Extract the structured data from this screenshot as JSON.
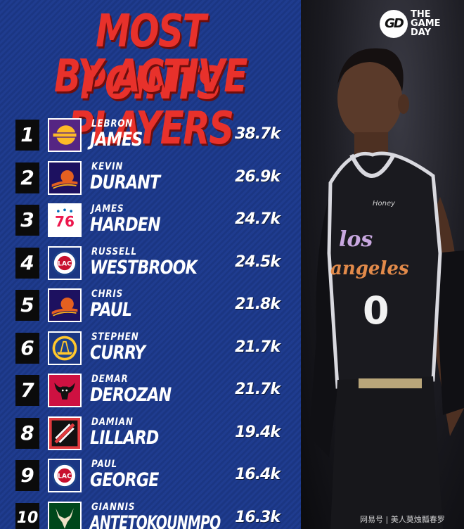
{
  "title": {
    "line1": "MOST POINTS",
    "line2": "BY ACTIVE PLAYERS"
  },
  "brand": {
    "mark": "GD",
    "line1": "THE",
    "line2": "GAME",
    "line3": "DAY"
  },
  "watermark": "网易号 | 美人莫烛瓢春罗",
  "jersey": {
    "text1": "los",
    "text2": "angeles",
    "number": "0",
    "tag": "Honey"
  },
  "colors": {
    "accent_red": "#e8312b",
    "panel_blue": "#1f3c8f"
  },
  "players": [
    {
      "rank": "1",
      "first": "LEBRON",
      "last": "JAMES",
      "points": "38.7k",
      "team_logo": "lakers-logo-icon"
    },
    {
      "rank": "2",
      "first": "KEVIN",
      "last": "DURANT",
      "points": "26.9k",
      "team_logo": "suns-logo-icon"
    },
    {
      "rank": "3",
      "first": "JAMES",
      "last": "HARDEN",
      "points": "24.7k",
      "team_logo": "sixers-logo-icon"
    },
    {
      "rank": "4",
      "first": "RUSSELL",
      "last": "WESTBROOK",
      "points": "24.5k",
      "team_logo": "clippers-logo-icon"
    },
    {
      "rank": "5",
      "first": "CHRIS",
      "last": "PAUL",
      "points": "21.8k",
      "team_logo": "suns-logo-icon"
    },
    {
      "rank": "6",
      "first": "STEPHEN",
      "last": "CURRY",
      "points": "21.7k",
      "team_logo": "warriors-logo-icon"
    },
    {
      "rank": "7",
      "first": "DEMAR",
      "last": "DEROZAN",
      "points": "21.7k",
      "team_logo": "bulls-logo-icon"
    },
    {
      "rank": "8",
      "first": "DAMIAN",
      "last": "LILLARD",
      "points": "19.4k",
      "team_logo": "blazers-logo-icon"
    },
    {
      "rank": "9",
      "first": "PAUL",
      "last": "GEORGE",
      "points": "16.4k",
      "team_logo": "clippers-logo-icon"
    },
    {
      "rank": "10",
      "first": "GIANNIS",
      "last": "ANTETOKOUNMPO",
      "points": "16.3k",
      "team_logo": "bucks-logo-icon"
    }
  ]
}
